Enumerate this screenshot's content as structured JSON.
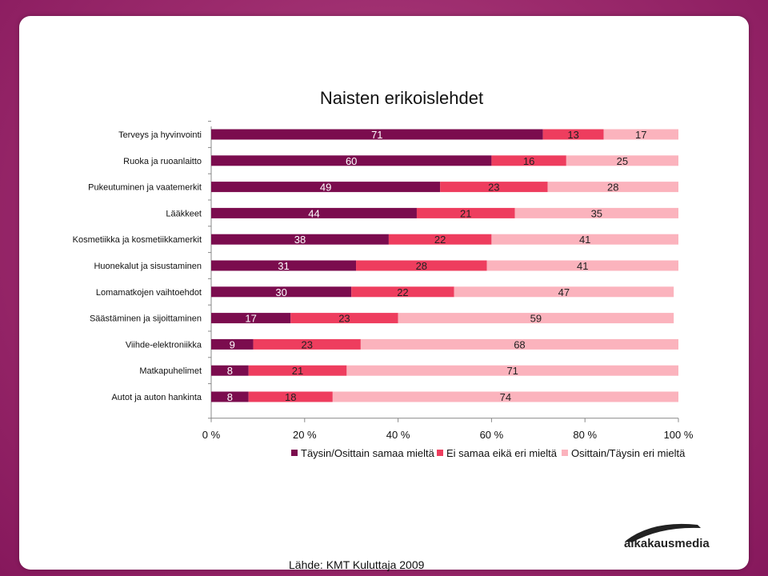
{
  "chart_data": {
    "type": "bar",
    "orientation": "horizontal-stacked-percent",
    "title": "Naisten erikoislehdet",
    "categories": [
      "Terveys ja hyvinvointi",
      "Ruoka ja ruoanlaitto",
      "Pukeutuminen ja vaatemerkit",
      "Lääkkeet",
      "Kosmetiikka ja kosmetiikkamerkit",
      "Huonekalut ja sisustaminen",
      "Lomamatkojen vaihtoehdot",
      "Säästäminen ja sijoittaminen",
      "Viihde-elektroniikka",
      "Matkapuhelimet",
      "Autot ja auton hankinta"
    ],
    "series": [
      {
        "name": "Täysin/Osittain samaa mieltä",
        "color": "#7b0c4e",
        "values": [
          71,
          60,
          49,
          44,
          38,
          31,
          30,
          17,
          9,
          8,
          8
        ]
      },
      {
        "name": "Ei samaa eikä eri mieltä",
        "color": "#ee3d5e",
        "values": [
          13,
          16,
          23,
          21,
          22,
          28,
          22,
          23,
          23,
          21,
          18
        ]
      },
      {
        "name": "Osittain/Täysin eri mieltä",
        "color": "#fbb3bd",
        "values": [
          17,
          25,
          28,
          35,
          41,
          41,
          47,
          59,
          68,
          71,
          74
        ]
      }
    ],
    "xticks": [
      "0 %",
      "20 %",
      "40 %",
      "60 %",
      "80 %",
      "100 %"
    ],
    "xlim": [
      0,
      100
    ],
    "legend_position": "bottom"
  },
  "source": "Lähde: KMT Kuluttaja 2009",
  "logo": {
    "text": "aikakausmedia"
  }
}
